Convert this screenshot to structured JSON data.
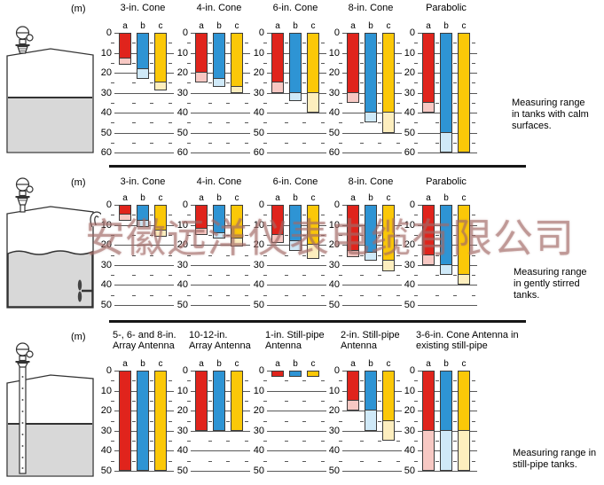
{
  "watermark": "安徽远洋仪表电缆有限公司",
  "chart_data": {
    "type": "bar",
    "unit": "(m)",
    "legend": "bars a, b, c per antenna; solid = standard range, pale = extended range",
    "series_colors": [
      {
        "name": "a",
        "solid": "#e0241c",
        "extended": "#f7c8c3"
      },
      {
        "name": "b",
        "solid": "#2e94d4",
        "extended": "#cfe9f8"
      },
      {
        "name": "c",
        "solid": "#fbc808",
        "extended": "#fdeebe"
      }
    ],
    "rows": [
      {
        "caption": "Measuring range in tanks with calm surfaces.",
        "ylim": [
          0,
          60
        ],
        "charts": [
          {
            "title_lines": [
              "3-in. Cone"
            ],
            "bars": [
              {
                "label": "a",
                "solid": 13,
                "extended": 16
              },
              {
                "label": "b",
                "solid": 18,
                "extended": 23
              },
              {
                "label": "c",
                "solid": 25,
                "extended": 29
              }
            ]
          },
          {
            "title_lines": [
              "4-in. Cone"
            ],
            "bars": [
              {
                "label": "a",
                "solid": 20,
                "extended": 25
              },
              {
                "label": "b",
                "solid": 23,
                "extended": 27
              },
              {
                "label": "c",
                "solid": 27,
                "extended": 30
              }
            ]
          },
          {
            "title_lines": [
              "6-in. Cone"
            ],
            "bars": [
              {
                "label": "a",
                "solid": 25,
                "extended": 30
              },
              {
                "label": "b",
                "solid": 30,
                "extended": 34
              },
              {
                "label": "c",
                "solid": 30,
                "extended": 40
              }
            ]
          },
          {
            "title_lines": [
              "8-in. Cone"
            ],
            "bars": [
              {
                "label": "a",
                "solid": 30,
                "extended": 35
              },
              {
                "label": "b",
                "solid": 40,
                "extended": 45
              },
              {
                "label": "c",
                "solid": 40,
                "extended": 50
              }
            ]
          },
          {
            "title_lines": [
              "Parabolic"
            ],
            "bars": [
              {
                "label": "a",
                "solid": 35,
                "extended": 40
              },
              {
                "label": "b",
                "solid": 50,
                "extended": 60
              },
              {
                "label": "c",
                "solid": 60,
                "extended": 60
              }
            ]
          }
        ]
      },
      {
        "caption": "Measuring range in gently stirred tanks.",
        "ylim": [
          0,
          50
        ],
        "charts": [
          {
            "title_lines": [
              "3-in. Cone"
            ],
            "bars": [
              {
                "label": "a",
                "solid": 5,
                "extended": 8
              },
              {
                "label": "b",
                "solid": 8,
                "extended": 11
              },
              {
                "label": "c",
                "solid": 13,
                "extended": 16
              }
            ]
          },
          {
            "title_lines": [
              "4-in. Cone"
            ],
            "bars": [
              {
                "label": "a",
                "solid": 12,
                "extended": 15
              },
              {
                "label": "b",
                "solid": 14,
                "extended": 17
              },
              {
                "label": "c",
                "solid": 17,
                "extended": 21
              }
            ]
          },
          {
            "title_lines": [
              "6-in. Cone"
            ],
            "bars": [
              {
                "label": "a",
                "solid": 15,
                "extended": 19
              },
              {
                "label": "b",
                "solid": 18,
                "extended": 23
              },
              {
                "label": "c",
                "solid": 20,
                "extended": 27
              }
            ]
          },
          {
            "title_lines": [
              "8-in. Cone"
            ],
            "bars": [
              {
                "label": "a",
                "solid": 23,
                "extended": 26
              },
              {
                "label": "b",
                "solid": 24,
                "extended": 28
              },
              {
                "label": "c",
                "solid": 28,
                "extended": 33
              }
            ]
          },
          {
            "title_lines": [
              "Parabolic"
            ],
            "bars": [
              {
                "label": "a",
                "solid": 25,
                "extended": 30
              },
              {
                "label": "b",
                "solid": 30,
                "extended": 35
              },
              {
                "label": "c",
                "solid": 35,
                "extended": 40
              }
            ]
          }
        ]
      },
      {
        "caption": "Measuring range in still-pipe tanks.",
        "ylim": [
          0,
          50
        ],
        "charts": [
          {
            "title_lines": [
              "5-, 6- and 8-in.",
              "Array Antenna"
            ],
            "bars": [
              {
                "label": "a",
                "solid": 50,
                "extended": 50
              },
              {
                "label": "b",
                "solid": 50,
                "extended": 50
              },
              {
                "label": "c",
                "solid": 50,
                "extended": 50
              }
            ]
          },
          {
            "title_lines": [
              "10-12-in.",
              "Array Antenna"
            ],
            "bars": [
              {
                "label": "a",
                "solid": 30,
                "extended": 30
              },
              {
                "label": "b",
                "solid": 30,
                "extended": 30
              },
              {
                "label": "c",
                "solid": 30,
                "extended": 30
              }
            ]
          },
          {
            "title_lines": [
              "1-in. Still-pipe",
              "Antenna"
            ],
            "bars": [
              {
                "label": "a",
                "solid": 3,
                "extended": 3
              },
              {
                "label": "b",
                "solid": 3,
                "extended": 3
              },
              {
                "label": "c",
                "solid": 3,
                "extended": 3
              }
            ]
          },
          {
            "title_lines": [
              "2-in. Still-pipe",
              "Antenna"
            ],
            "bars": [
              {
                "label": "a",
                "solid": 15,
                "extended": 20
              },
              {
                "label": "b",
                "solid": 20,
                "extended": 30
              },
              {
                "label": "c",
                "solid": 25,
                "extended": 35
              }
            ]
          },
          {
            "title_lines": [
              "3-6-in. Cone Antenna in",
              "existing still-pipe"
            ],
            "bars": [
              {
                "label": "a",
                "solid": 30,
                "extended": 50
              },
              {
                "label": "b",
                "solid": 30,
                "extended": 50
              },
              {
                "label": "c",
                "solid": 30,
                "extended": 50
              }
            ]
          }
        ]
      }
    ]
  }
}
